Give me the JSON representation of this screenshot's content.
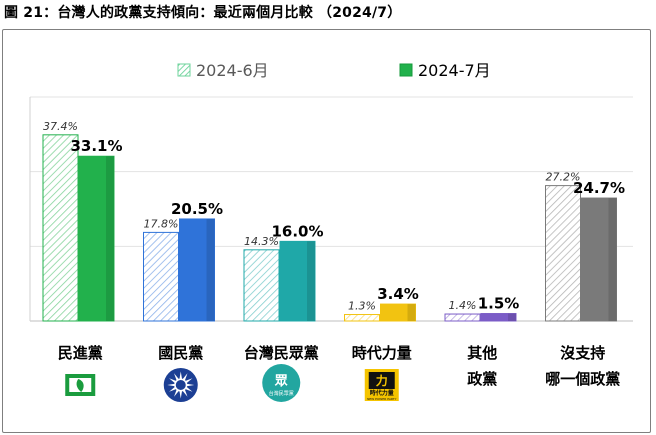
{
  "title": "圖 21：台灣人的政黨支持傾向：最近兩個月比較 （2024/7）",
  "chart_data": {
    "type": "bar",
    "categories": [
      [
        "民進黨"
      ],
      [
        "國民黨"
      ],
      [
        "台灣民眾黨"
      ],
      [
        "時代力量"
      ],
      [
        "其他",
        "政黨"
      ],
      [
        "沒支持",
        "哪一個政黨"
      ]
    ],
    "series": [
      {
        "name": "2024-6月",
        "values": [
          37.4,
          17.8,
          14.3,
          1.3,
          1.4,
          27.2
        ],
        "labels": [
          "37.4%",
          "17.8%",
          "14.3%",
          "1.3%",
          "1.4%",
          "27.2%"
        ]
      },
      {
        "name": "2024-7月",
        "values": [
          33.1,
          20.5,
          16.0,
          3.4,
          1.5,
          24.7
        ],
        "labels": [
          "33.1%",
          "20.5%",
          "16.0%",
          "3.4%",
          "1.5%",
          "24.7%"
        ]
      }
    ],
    "ylim": [
      0,
      45
    ],
    "grid": true,
    "legend": "top-center",
    "colors": {
      "dpp": [
        "#d9f2dc",
        "#22b14c"
      ],
      "kmt": [
        "#dbe7fb",
        "#2f73d9"
      ],
      "tpp": [
        "#d5f1f0",
        "#1fa8a8"
      ],
      "npp": [
        "#fff3c4",
        "#f2c311"
      ],
      "other": [
        "#e8def5",
        "#7b5cc7"
      ],
      "none": [
        "#e6e6e6",
        "#7a7a7a"
      ]
    }
  },
  "logos": {
    "tpp_text": "台灣民眾黨",
    "npp_text": "時代力量",
    "npp_sub": "NEW POWER PARTY"
  }
}
